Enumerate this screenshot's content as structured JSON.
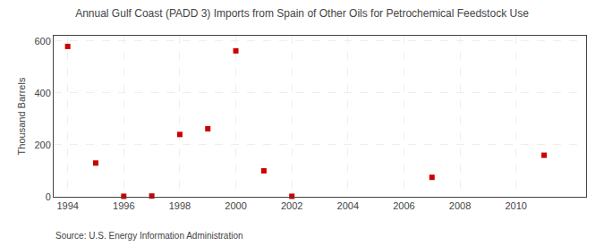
{
  "chart_data": {
    "type": "scatter",
    "title": "Annual Gulf Coast (PADD 3) Imports from Spain of Other Oils for Petrochemical Feedstock Use",
    "ylabel": "Thousand Barrels",
    "annotations": [
      "Source: U.S. Energy Information Administration"
    ],
    "x": [
      1994,
      1995,
      1996,
      1997,
      1998,
      1999,
      2000,
      2001,
      2002,
      2007,
      2011
    ],
    "values": [
      579,
      130,
      2,
      3,
      240,
      262,
      562,
      100,
      2,
      75,
      160
    ],
    "color": "#cc0000",
    "marker": "square",
    "xlim": [
      1993.5,
      2012.5
    ],
    "xticks": [
      1994,
      1996,
      1998,
      2000,
      2002,
      2004,
      2006,
      2008,
      2010
    ],
    "ylim": [
      0,
      620
    ],
    "yticks": [
      0,
      200,
      400,
      600
    ],
    "grid": true
  }
}
